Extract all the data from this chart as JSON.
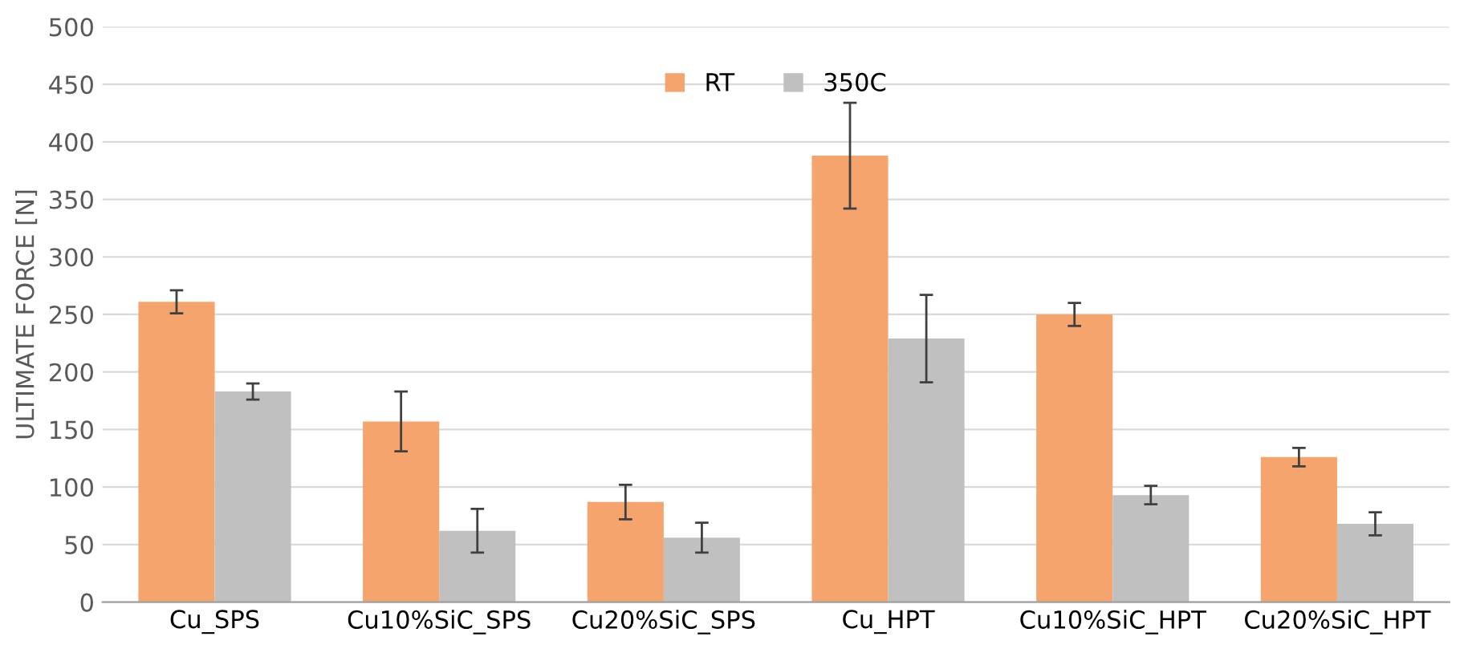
{
  "chart_data": {
    "type": "bar",
    "ylabel": "ULTIMATE FORCE [N]",
    "categories": [
      "Cu_SPS",
      "Cu10%SiC_SPS",
      "Cu20%SiC_SPS",
      "Cu_HPT",
      "Cu10%SiC_HPT",
      "Cu20%SiC_HPT"
    ],
    "series": [
      {
        "name": "RT",
        "color": "#f4a46c",
        "values": [
          261,
          157,
          87,
          388,
          250,
          126
        ],
        "errors": [
          10,
          26,
          15,
          46,
          10,
          8
        ]
      },
      {
        "name": "350C",
        "color": "#c0c0c0",
        "values": [
          183,
          62,
          56,
          229,
          93,
          68
        ],
        "errors": [
          7,
          19,
          13,
          38,
          8,
          10
        ]
      }
    ],
    "ylim": [
      0,
      500
    ],
    "yticks": [
      0,
      50,
      100,
      150,
      200,
      250,
      300,
      350,
      400,
      450,
      500
    ],
    "grid": "y",
    "legend": "top"
  }
}
